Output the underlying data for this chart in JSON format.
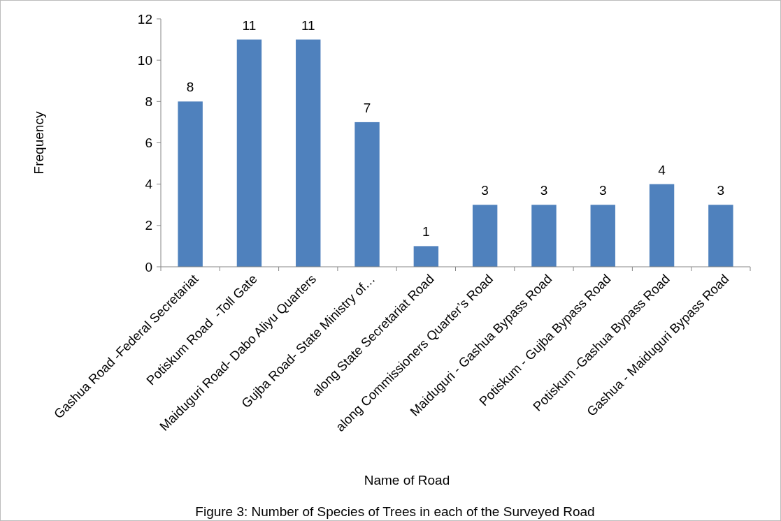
{
  "chart_data": {
    "type": "bar",
    "categories": [
      "Gashua Road -Federal Secretariat",
      "Potiskum Road  -Toll Gate",
      "Maiduguri Road- Dabo Aliyu Quarters",
      "Gujba Road- State Ministry of…",
      "along State Secretariat Road",
      "along Commissioners Quarter’s Road",
      "Maiduguri - Gashua Bypass Road",
      "Potiskum - Gujba Bypass Road",
      "Potiskum -Gashua Bypass Road",
      "Gashua - Maiduguri Bypass Road"
    ],
    "values": [
      8,
      11,
      11,
      7,
      1,
      3,
      3,
      3,
      4,
      3
    ],
    "color": "#4f81bd",
    "ylim": [
      0,
      12
    ],
    "yticks": [
      0,
      2,
      4,
      6,
      8,
      10,
      12
    ],
    "xlabel": "Name of Road",
    "ylabel": "Frequency",
    "data_labels": true,
    "grid": false,
    "annotations": [
      "Figure 3: Number of Species of Trees in each of the Surveyed Road"
    ]
  }
}
